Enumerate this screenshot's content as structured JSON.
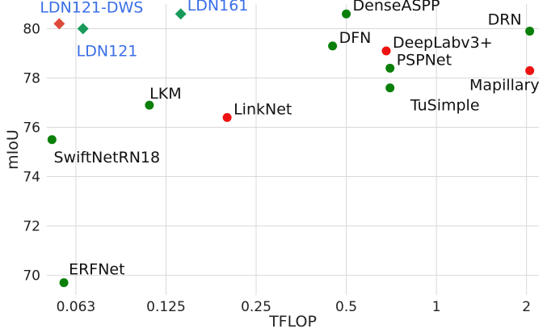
{
  "chart_data": {
    "type": "scatter",
    "title": "",
    "xlabel": "TFLOP",
    "ylabel": "mIoU",
    "x_scale": "log2",
    "xlim": [
      0.05,
      2.2
    ],
    "ylim": [
      69.2,
      81.0
    ],
    "x_ticks": [
      {
        "value": 0.0625,
        "label": "0.063"
      },
      {
        "value": 0.125,
        "label": "0.125"
      },
      {
        "value": 0.25,
        "label": "0.25"
      },
      {
        "value": 0.5,
        "label": "0.5"
      },
      {
        "value": 1,
        "label": "1"
      },
      {
        "value": 2,
        "label": "2"
      }
    ],
    "y_ticks": [
      {
        "value": 70,
        "label": "70"
      },
      {
        "value": 72,
        "label": "72"
      },
      {
        "value": 74,
        "label": "74"
      },
      {
        "value": 76,
        "label": "76"
      },
      {
        "value": 78,
        "label": "78"
      },
      {
        "value": 80,
        "label": "80"
      }
    ],
    "grid": true,
    "colors": {
      "green": "#0a7f0a",
      "red": "#ee1111",
      "diamond_red": "#dd4a3a",
      "diamond_green": "#1a9a5a",
      "blue_text": "#3a6ee8",
      "black_text": "#111111"
    },
    "points": [
      {
        "name": "LDN121-DWS",
        "x": 0.055,
        "y": 80.2,
        "marker": "diamond",
        "color": "diamond_red",
        "label_color": "blue_text",
        "label_pos": "above"
      },
      {
        "name": "LDN121",
        "x": 0.066,
        "y": 80.0,
        "marker": "diamond",
        "color": "diamond_green",
        "label_color": "blue_text",
        "label_pos": "below-right"
      },
      {
        "name": "LDN161",
        "x": 0.14,
        "y": 80.6,
        "marker": "diamond",
        "color": "diamond_green",
        "label_color": "blue_text",
        "label_pos": "right"
      },
      {
        "name": "DenseASPP",
        "x": 0.5,
        "y": 80.6,
        "marker": "circle",
        "color": "green",
        "label_color": "black_text",
        "label_pos": "right"
      },
      {
        "name": "DRN",
        "x": 2.05,
        "y": 79.9,
        "marker": "circle",
        "color": "green",
        "label_color": "black_text",
        "label_pos": "above-left"
      },
      {
        "name": "DFN",
        "x": 0.45,
        "y": 79.3,
        "marker": "circle",
        "color": "green",
        "label_color": "black_text",
        "label_pos": "right"
      },
      {
        "name": "DeepLabv3+",
        "x": 0.68,
        "y": 79.1,
        "marker": "circle",
        "color": "red",
        "label_color": "black_text",
        "label_pos": "right"
      },
      {
        "name": "PSPNet",
        "x": 0.7,
        "y": 78.4,
        "marker": "circle",
        "color": "green",
        "label_color": "black_text",
        "label_pos": "right"
      },
      {
        "name": "Mapillary",
        "x": 2.05,
        "y": 78.3,
        "marker": "circle",
        "color": "red",
        "label_color": "black_text",
        "label_pos": "below-left"
      },
      {
        "name": "TuSimple",
        "x": 0.7,
        "y": 77.6,
        "marker": "circle",
        "color": "green",
        "label_color": "black_text",
        "label_pos": "below"
      },
      {
        "name": "LKM",
        "x": 0.11,
        "y": 76.9,
        "marker": "circle",
        "color": "green",
        "label_color": "black_text",
        "label_pos": "above"
      },
      {
        "name": "LinkNet",
        "x": 0.2,
        "y": 76.4,
        "marker": "circle",
        "color": "red",
        "label_color": "black_text",
        "label_pos": "right"
      },
      {
        "name": "SwiftNetRN18",
        "x": 0.052,
        "y": 75.5,
        "marker": "circle",
        "color": "green",
        "label_color": "black_text",
        "label_pos": "below"
      },
      {
        "name": "ERFNet",
        "x": 0.057,
        "y": 69.7,
        "marker": "circle",
        "color": "green",
        "label_color": "black_text",
        "label_pos": "above-right"
      }
    ]
  }
}
